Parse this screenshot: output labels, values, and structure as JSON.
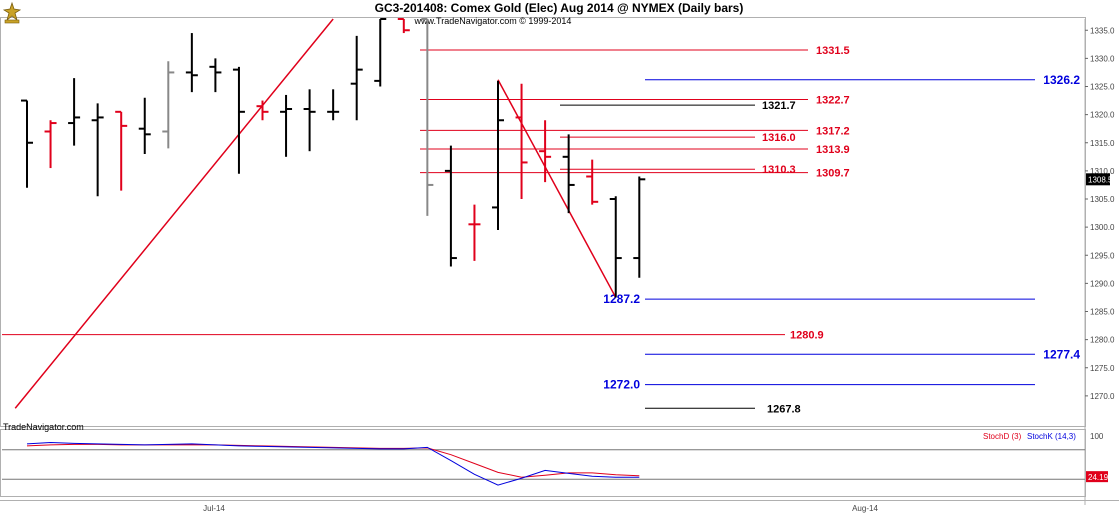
{
  "header": {
    "title": "GC3-201408:  Comex Gold (Elec) Aug 2014 @ NYMEX  (Daily bars)",
    "subtitle": "www.TradeNavigator.com © 1999-2014"
  },
  "watermark": "TradeNavigator.com",
  "colors": {
    "bar_up": "#000000",
    "bar_down": "#e0001b",
    "bar_gray": "#888888",
    "trend": "#e0001b",
    "resistance": "#e0001b",
    "support": "#0000dd",
    "stoch_d": "#e0001b",
    "stoch_k": "#0000dd",
    "price_tag_bg": "#000000",
    "stoch_tag_bg": "#e0001b"
  },
  "chart_data": {
    "type": "ohlc",
    "y_axis": {
      "ylim": [
        1265,
        1337
      ],
      "ticks": [
        "1335.0",
        "1330.0",
        "1325.0",
        "1320.0",
        "1315.0",
        "1310.0",
        "1305.0",
        "1300.0",
        "1295.0",
        "1290.0",
        "1285.0",
        "1280.0",
        "1275.0",
        "1270.0"
      ]
    },
    "x_axis": {
      "labels": [
        "Jul-14",
        "Aug-14"
      ]
    },
    "last_price": "1308.5",
    "bars": [
      {
        "o": 1322.5,
        "h": 1322.5,
        "l": 1307,
        "c": 1315,
        "color": "black"
      },
      {
        "o": 1317,
        "h": 1319,
        "l": 1310.5,
        "c": 1318.5,
        "color": "red"
      },
      {
        "o": 1318.5,
        "h": 1326.5,
        "l": 1314.5,
        "c": 1319.5,
        "color": "black"
      },
      {
        "o": 1319,
        "h": 1322,
        "l": 1305.5,
        "c": 1319.5,
        "color": "black"
      },
      {
        "o": 1320.5,
        "h": 1320.5,
        "l": 1306.5,
        "c": 1318,
        "color": "red"
      },
      {
        "o": 1317.5,
        "h": 1323,
        "l": 1313,
        "c": 1316.5,
        "color": "black"
      },
      {
        "o": 1317,
        "h": 1329.5,
        "l": 1314,
        "c": 1327.5,
        "color": "gray"
      },
      {
        "o": 1327.5,
        "h": 1334.5,
        "l": 1324,
        "c": 1327,
        "color": "black"
      },
      {
        "o": 1328.5,
        "h": 1330,
        "l": 1324,
        "c": 1327.5,
        "color": "black"
      },
      {
        "o": 1328,
        "h": 1328.5,
        "l": 1309.5,
        "c": 1320.5,
        "color": "black"
      },
      {
        "o": 1321.5,
        "h": 1322.5,
        "l": 1319,
        "c": 1320.5,
        "color": "red"
      },
      {
        "o": 1320.5,
        "h": 1323.5,
        "l": 1312.5,
        "c": 1321,
        "color": "black"
      },
      {
        "o": 1321,
        "h": 1324.5,
        "l": 1313.5,
        "c": 1320.5,
        "color": "black"
      },
      {
        "o": 1320.5,
        "h": 1324.5,
        "l": 1319,
        "c": 1320.5,
        "color": "black"
      },
      {
        "o": 1325.5,
        "h": 1334,
        "l": 1319,
        "c": 1328,
        "color": "black"
      },
      {
        "o": 1326,
        "h": 1337,
        "l": 1325,
        "c": 1337,
        "color": "black"
      },
      {
        "o": 1337,
        "h": 1337,
        "l": 1334.5,
        "c": 1335,
        "color": "red"
      },
      {
        "o": 1337,
        "h": 1337,
        "l": 1302,
        "c": 1307.5,
        "color": "gray"
      },
      {
        "o": 1310,
        "h": 1314.5,
        "l": 1293,
        "c": 1294.5,
        "color": "black"
      },
      {
        "o": 1300.5,
        "h": 1304,
        "l": 1294,
        "c": 1300.5,
        "color": "red"
      },
      {
        "o": 1303.5,
        "h": 1326,
        "l": 1299.5,
        "c": 1319,
        "color": "black"
      },
      {
        "o": 1319.5,
        "h": 1325.5,
        "l": 1305,
        "c": 1311.5,
        "color": "red"
      },
      {
        "o": 1313.5,
        "h": 1319,
        "l": 1308,
        "c": 1312.5,
        "color": "red"
      },
      {
        "o": 1312.5,
        "h": 1316.5,
        "l": 1302.5,
        "c": 1307.5,
        "color": "black"
      },
      {
        "o": 1309,
        "h": 1312,
        "l": 1304,
        "c": 1304.5,
        "color": "red"
      },
      {
        "o": 1305,
        "h": 1305.5,
        "l": 1287.5,
        "c": 1294.5,
        "color": "black"
      },
      {
        "o": 1294.5,
        "h": 1309,
        "l": 1291,
        "c": 1308.5,
        "color": "black"
      }
    ],
    "levels": [
      {
        "label": "1331.5",
        "value": 1331.5,
        "color": "red"
      },
      {
        "label": "1326.2",
        "value": 1326.2,
        "color": "blue"
      },
      {
        "label": "1322.7",
        "value": 1322.7,
        "color": "red"
      },
      {
        "label": "1321.7",
        "value": 1321.7,
        "color": "black"
      },
      {
        "label": "1317.2",
        "value": 1317.2,
        "color": "red"
      },
      {
        "label": "1316.0",
        "value": 1316.0,
        "color": "red"
      },
      {
        "label": "1313.9",
        "value": 1313.9,
        "color": "red"
      },
      {
        "label": "1310.3",
        "value": 1310.3,
        "color": "red"
      },
      {
        "label": "1309.7",
        "value": 1309.7,
        "color": "red"
      },
      {
        "label": "1287.2",
        "value": 1287.2,
        "color": "blue"
      },
      {
        "label": "1280.9",
        "value": 1280.9,
        "color": "red"
      },
      {
        "label": "1277.4",
        "value": 1277.4,
        "color": "blue"
      },
      {
        "label": "1272.0",
        "value": 1272.0,
        "color": "blue"
      },
      {
        "label": "1267.8",
        "value": 1267.8,
        "color": "black"
      }
    ],
    "trendlines": [
      {
        "from": {
          "bar": -0.5,
          "value": 1267.8
        },
        "to": {
          "bar": 13,
          "value": 1337
        }
      },
      {
        "from": {
          "bar": 20,
          "value": 1326.2
        },
        "to": {
          "bar": 25,
          "value": 1287.5
        }
      }
    ],
    "stochastic": {
      "legend_d": "StochD (3)",
      "legend_k": "StochK (14,3)",
      "axis_label": "100",
      "last_value": "24.19",
      "ylim": [
        0,
        100
      ],
      "levels": [
        80,
        20
      ],
      "stoch_d": [
        88,
        90,
        91,
        91,
        90,
        90,
        90,
        90,
        90,
        89,
        88,
        87,
        86,
        85,
        84,
        83,
        83,
        84,
        70,
        52,
        34,
        24,
        28,
        33,
        33,
        29,
        27
      ],
      "stoch_k": [
        92,
        95,
        93,
        92,
        91,
        90,
        91,
        92,
        90,
        88,
        87,
        86,
        85,
        84,
        83,
        82,
        82,
        85,
        58,
        30,
        8,
        22,
        38,
        32,
        26,
        24,
        24
      ]
    }
  }
}
